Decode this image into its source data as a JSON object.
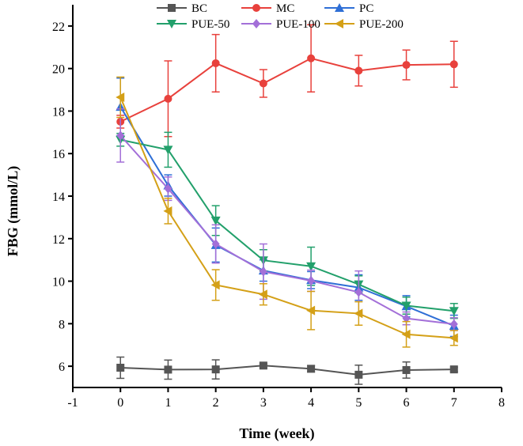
{
  "chart_data": {
    "type": "line",
    "title": "",
    "xlabel": "Time (week)",
    "ylabel": "FBG (mmol/L)",
    "xlim": [
      -1,
      8
    ],
    "ylim": [
      5,
      23
    ],
    "xticks": [
      -1,
      0,
      1,
      2,
      3,
      4,
      5,
      6,
      7,
      8
    ],
    "yticks": [
      6,
      8,
      10,
      12,
      14,
      16,
      18,
      20,
      22
    ],
    "legend_position": "top",
    "x": [
      0,
      1,
      2,
      3,
      4,
      5,
      6,
      7
    ],
    "series": [
      {
        "name": "BC",
        "color": "#555555",
        "marker": "square",
        "values": [
          5.93,
          5.84,
          5.85,
          6.03,
          5.88,
          5.6,
          5.82,
          5.85
        ],
        "errors": [
          0.5,
          0.45,
          0.45,
          0.1,
          0.15,
          0.45,
          0.38,
          0.1
        ]
      },
      {
        "name": "MC",
        "color": "#e8413c",
        "marker": "circle",
        "values": [
          17.5,
          18.58,
          20.25,
          19.3,
          20.48,
          19.9,
          20.17,
          20.2
        ],
        "errors": [
          0.3,
          1.78,
          1.35,
          0.65,
          1.58,
          0.72,
          0.7,
          1.08
        ]
      },
      {
        "name": "PC",
        "color": "#2f6fd6",
        "marker": "triangle-up",
        "values": [
          18.2,
          14.5,
          11.7,
          10.5,
          10.05,
          9.7,
          8.82,
          7.9
        ],
        "errors": [
          1.35,
          0.5,
          0.8,
          0.5,
          0.4,
          0.6,
          0.5,
          0.5
        ]
      },
      {
        "name": "PUE-50",
        "color": "#22a06b",
        "marker": "triangle-down",
        "values": [
          16.65,
          16.18,
          12.85,
          10.98,
          10.7,
          9.85,
          8.85,
          8.6
        ],
        "errors": [
          0.3,
          0.82,
          0.7,
          0.5,
          0.9,
          0.4,
          0.4,
          0.35
        ]
      },
      {
        "name": "PUE-100",
        "color": "#a36fd8",
        "marker": "diamond",
        "values": [
          16.85,
          14.35,
          11.75,
          10.45,
          10.02,
          9.48,
          8.25,
          7.98
        ],
        "errors": [
          1.25,
          0.55,
          0.9,
          1.3,
          0.5,
          1.0,
          0.3,
          0.3
        ]
      },
      {
        "name": "PUE-200",
        "color": "#d4a017",
        "marker": "triangle-left",
        "values": [
          18.65,
          13.3,
          9.82,
          9.38,
          8.62,
          8.48,
          7.5,
          7.33
        ],
        "errors": [
          0.95,
          0.6,
          0.72,
          0.5,
          0.9,
          0.55,
          0.6,
          0.35
        ]
      }
    ]
  }
}
